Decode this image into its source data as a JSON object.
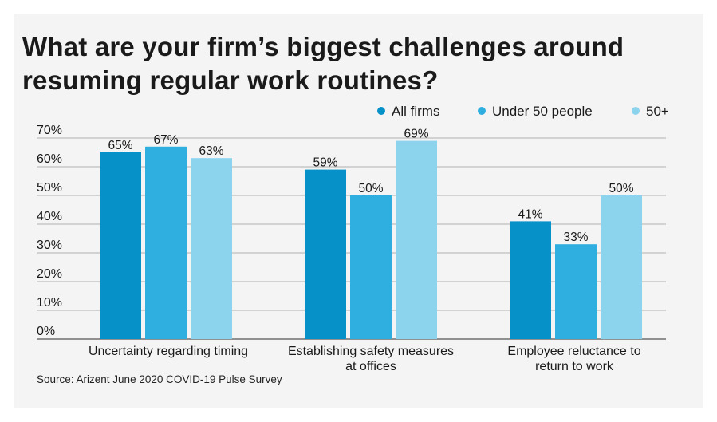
{
  "header": {
    "title": "What are your firm’s biggest challenges around resuming regular work routines?"
  },
  "footer": {
    "source": "Source: Arizent June 2020 COVID-19 Pulse Survey"
  },
  "chart_data": {
    "type": "bar",
    "title": "What are your firm’s biggest challenges around resuming regular work routines?",
    "xlabel": "",
    "ylabel": "",
    "ylim": [
      0,
      70
    ],
    "yticks": [
      0,
      10,
      20,
      30,
      40,
      50,
      60,
      70
    ],
    "ytick_labels": [
      "0%",
      "10%",
      "20%",
      "30%",
      "40%",
      "50%",
      "60%",
      "70%"
    ],
    "grid": true,
    "legend_position": "top-right",
    "value_suffix": "%",
    "categories": [
      [
        "Uncertainty regarding timing"
      ],
      [
        "Establishing safety measures",
        "at offices"
      ],
      [
        "Employee reluctance to",
        "return to work"
      ]
    ],
    "series": [
      {
        "name": "All firms",
        "color": "#0791c9",
        "values": [
          65,
          59,
          41
        ]
      },
      {
        "name": "Under 50 people",
        "color": "#2faee0",
        "values": [
          67,
          50,
          33
        ]
      },
      {
        "name": "50+",
        "color": "#8cd3ee",
        "values": [
          63,
          69,
          50
        ]
      }
    ]
  }
}
